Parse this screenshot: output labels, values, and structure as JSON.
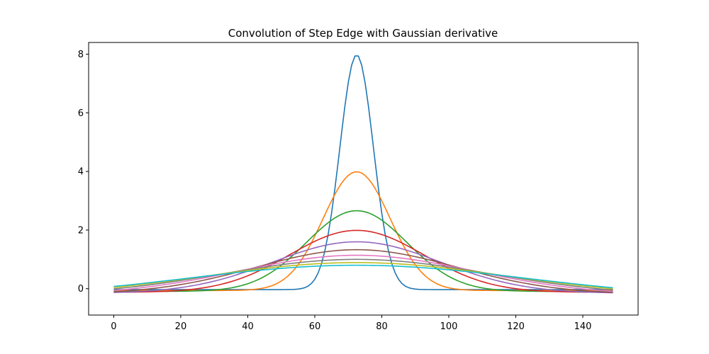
{
  "chart_data": {
    "type": "line",
    "title": "Convolution of Step Edge with Gaussian derivative",
    "xlabel": "",
    "ylabel": "",
    "xlim": [
      -7.5,
      156.5
    ],
    "ylim": [
      -0.9,
      8.4
    ],
    "xticks": [
      0,
      20,
      40,
      60,
      80,
      100,
      120,
      140
    ],
    "yticks": [
      0,
      2,
      4,
      6,
      8
    ],
    "grid": false,
    "legend": "none",
    "x_range": [
      0,
      149
    ],
    "center": 72.5,
    "series": [
      {
        "peak": 7.98,
        "sigma": 5,
        "color": "#1f77b4"
      },
      {
        "peak": 3.99,
        "sigma": 10,
        "color": "#ff7f0e"
      },
      {
        "peak": 2.66,
        "sigma": 15,
        "color": "#2ca02c"
      },
      {
        "peak": 1.99,
        "sigma": 20,
        "color": "#d62728"
      },
      {
        "peak": 1.6,
        "sigma": 25,
        "color": "#9467bd"
      },
      {
        "peak": 1.33,
        "sigma": 30,
        "color": "#8c564b"
      },
      {
        "peak": 1.14,
        "sigma": 35,
        "color": "#e377c2"
      },
      {
        "peak": 1.0,
        "sigma": 40,
        "color": "#7f7f7f"
      },
      {
        "peak": 0.89,
        "sigma": 45,
        "color": "#bcbd22"
      },
      {
        "peak": 0.8,
        "sigma": 50,
        "color": "#17becf"
      }
    ]
  }
}
